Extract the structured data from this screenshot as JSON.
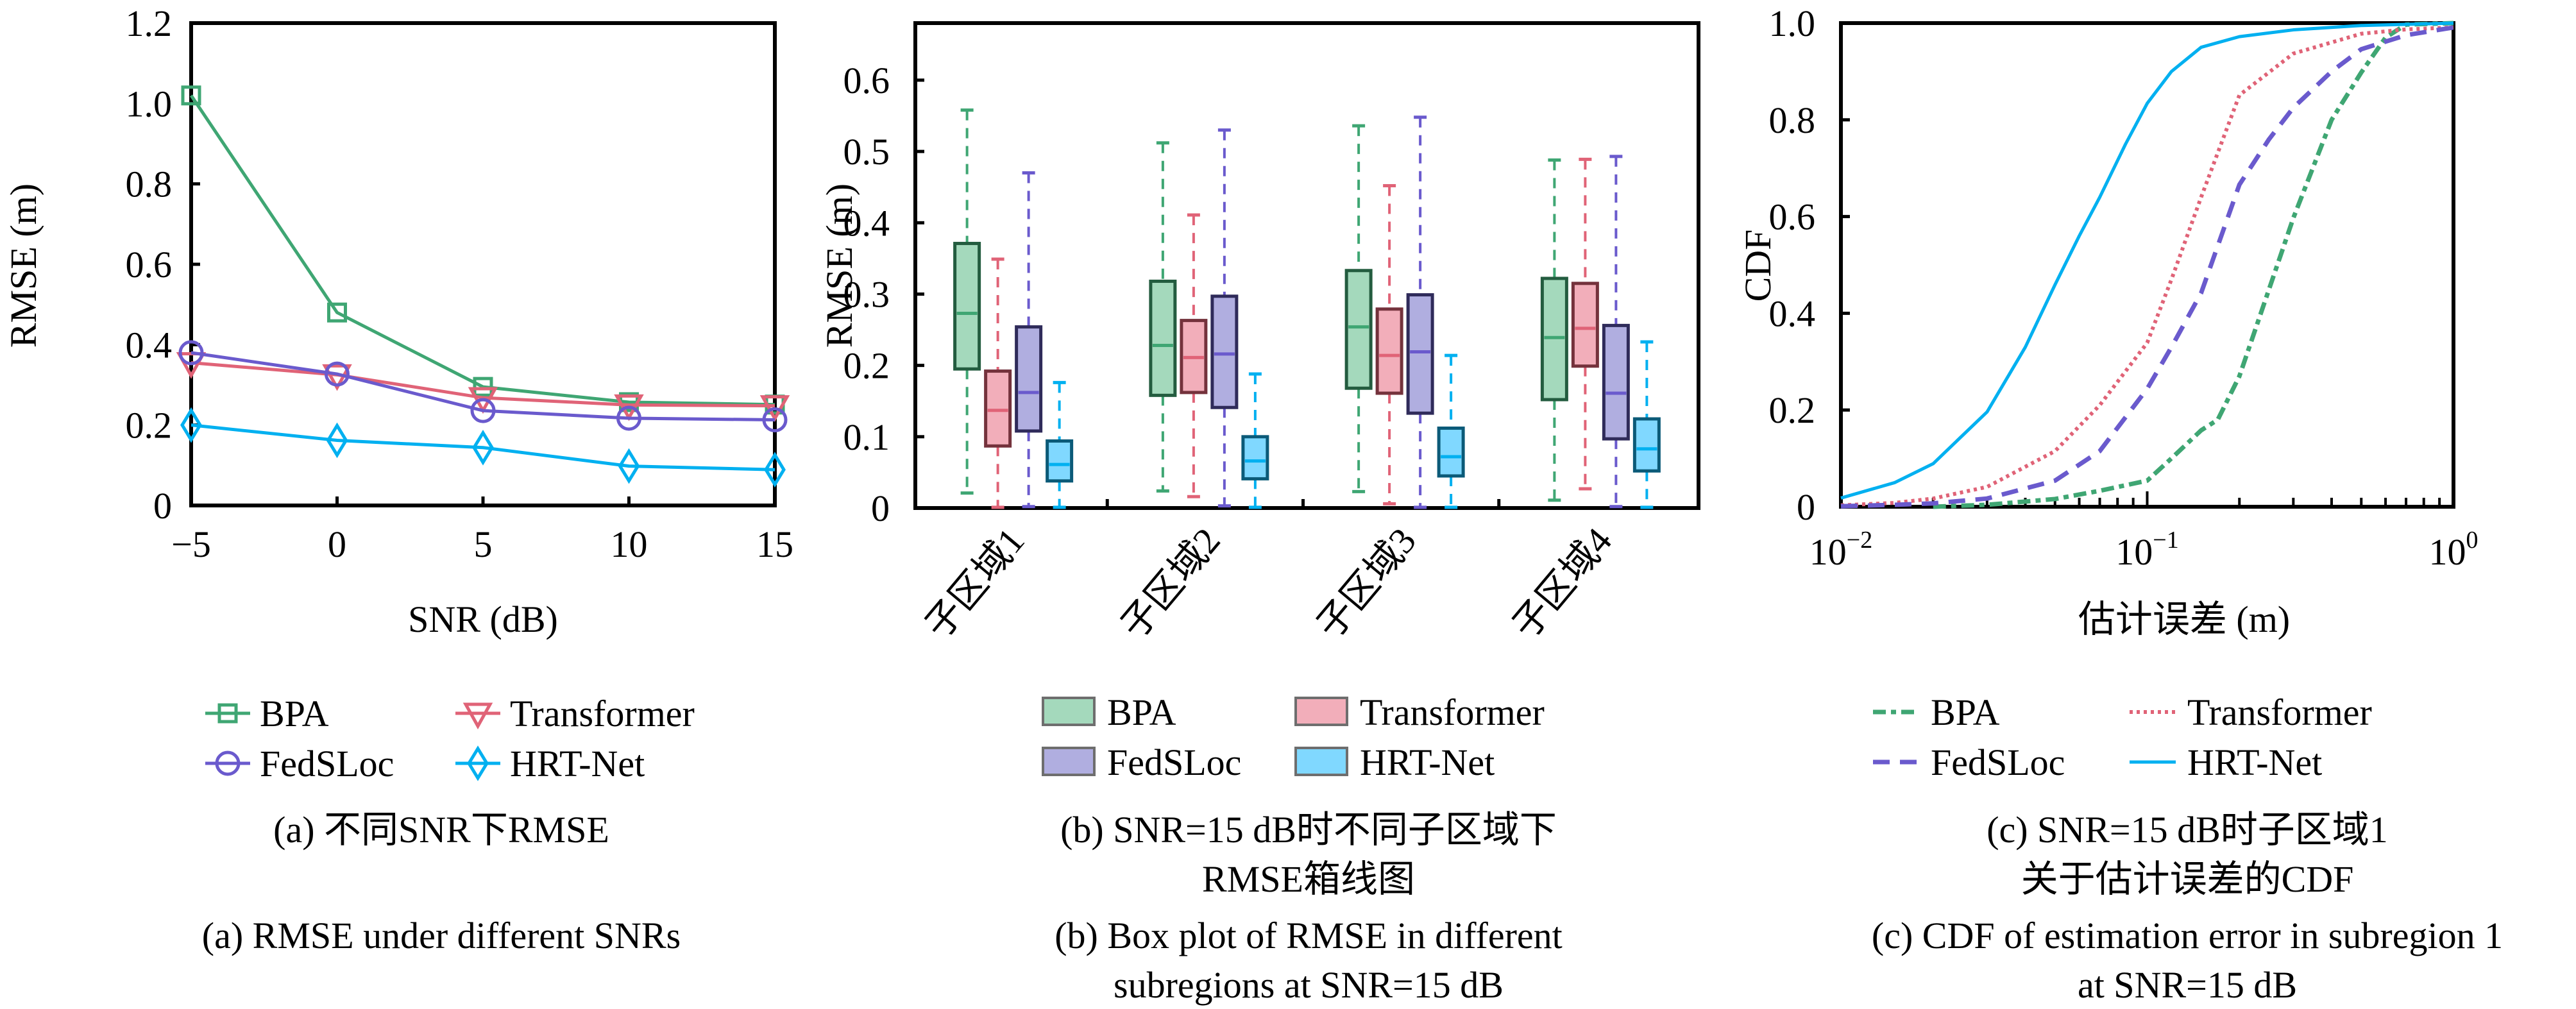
{
  "figure": {
    "panels": [
      "a",
      "b",
      "c"
    ]
  },
  "colors": {
    "BPA": "#3fa673",
    "Transformer": "#e06377",
    "FedSLoc": "#6a5acd",
    "HRT-Net": "#00b0f0",
    "BPA_fill": "#a4d9bc",
    "Transformer_fill": "#f2aeba",
    "FedSLoc_fill": "#b0aee0",
    "HRT-Net_fill": "#80d8ff",
    "BPA_edge": "#235c3f",
    "Transformer_edge": "#74323c",
    "FedSLoc_edge": "#2f2b5a",
    "HRT-Net_edge": "#0b5a78"
  },
  "chart_data": [
    {
      "id": "a",
      "type": "line",
      "title": "",
      "xlabel": "SNR (dB)",
      "ylabel": "RMSE (m)",
      "x": [
        -5,
        0,
        5,
        10,
        15
      ],
      "x_tick_labels": [
        "−5",
        "0",
        "5",
        "10",
        "15"
      ],
      "xlim": [
        -5,
        15
      ],
      "ylim": [
        0,
        1.2
      ],
      "y_ticks": [
        0,
        0.2,
        0.4,
        0.6,
        0.8,
        1.0,
        1.2
      ],
      "y_tick_labels": [
        "0",
        "0.2",
        "0.4",
        "0.6",
        "0.8",
        "1.0",
        "1.2"
      ],
      "grid": false,
      "legend_position": "below",
      "series": [
        {
          "name": "BPA",
          "marker": "square",
          "values": [
            1.02,
            0.48,
            0.295,
            0.257,
            0.251
          ]
        },
        {
          "name": "Transformer",
          "marker": "triangle-down",
          "values": [
            0.355,
            0.325,
            0.268,
            0.25,
            0.248
          ]
        },
        {
          "name": "FedSLoc",
          "marker": "circle",
          "values": [
            0.38,
            0.327,
            0.236,
            0.217,
            0.213
          ]
        },
        {
          "name": "HRT-Net",
          "marker": "diamond",
          "values": [
            0.2,
            0.162,
            0.144,
            0.098,
            0.089
          ]
        }
      ],
      "caption_cn": "(a) 不同SNR下RMSE",
      "caption_en": "(a) RMSE under different SNRs"
    },
    {
      "id": "b",
      "type": "box",
      "title": "",
      "xlabel": "",
      "ylabel": "RMSE (m)",
      "categories": [
        "子区域1",
        "子区域2",
        "子区域3",
        "子区域4"
      ],
      "ylim": [
        0,
        0.68
      ],
      "y_ticks": [
        0,
        0.1,
        0.2,
        0.3,
        0.4,
        0.5,
        0.6
      ],
      "y_tick_labels": [
        "0",
        "0.1",
        "0.2",
        "0.3",
        "0.4",
        "0.5",
        "0.6"
      ],
      "grid": false,
      "legend_position": "below",
      "series": [
        {
          "name": "BPA",
          "boxes": [
            {
              "min": 0.021,
              "q1": 0.195,
              "median": 0.273,
              "q3": 0.371,
              "max": 0.558
            },
            {
              "min": 0.024,
              "q1": 0.158,
              "median": 0.228,
              "q3": 0.318,
              "max": 0.512
            },
            {
              "min": 0.023,
              "q1": 0.168,
              "median": 0.254,
              "q3": 0.333,
              "max": 0.536
            },
            {
              "min": 0.011,
              "q1": 0.152,
              "median": 0.239,
              "q3": 0.322,
              "max": 0.488
            }
          ]
        },
        {
          "name": "Transformer",
          "boxes": [
            {
              "min": 0.001,
              "q1": 0.087,
              "median": 0.137,
              "q3": 0.192,
              "max": 0.349
            },
            {
              "min": 0.016,
              "q1": 0.162,
              "median": 0.211,
              "q3": 0.263,
              "max": 0.411
            },
            {
              "min": 0.006,
              "q1": 0.161,
              "median": 0.214,
              "q3": 0.279,
              "max": 0.452
            },
            {
              "min": 0.027,
              "q1": 0.199,
              "median": 0.252,
              "q3": 0.315,
              "max": 0.489
            }
          ]
        },
        {
          "name": "FedSLoc",
          "boxes": [
            {
              "min": 0.002,
              "q1": 0.108,
              "median": 0.162,
              "q3": 0.254,
              "max": 0.47
            },
            {
              "min": 0.003,
              "q1": 0.141,
              "median": 0.216,
              "q3": 0.297,
              "max": 0.53
            },
            {
              "min": 0.001,
              "q1": 0.133,
              "median": 0.219,
              "q3": 0.299,
              "max": 0.548
            },
            {
              "min": 0.002,
              "q1": 0.097,
              "median": 0.161,
              "q3": 0.256,
              "max": 0.493
            }
          ]
        },
        {
          "name": "HRT-Net",
          "boxes": [
            {
              "min": 0.001,
              "q1": 0.038,
              "median": 0.061,
              "q3": 0.094,
              "max": 0.176
            },
            {
              "min": 0.001,
              "q1": 0.041,
              "median": 0.066,
              "q3": 0.1,
              "max": 0.188
            },
            {
              "min": 0.001,
              "q1": 0.045,
              "median": 0.072,
              "q3": 0.112,
              "max": 0.214
            },
            {
              "min": 0.001,
              "q1": 0.052,
              "median": 0.083,
              "q3": 0.125,
              "max": 0.233
            }
          ]
        }
      ],
      "caption_cn_lines": [
        "(b) SNR=15 dB时不同子区域下",
        "RMSE箱线图"
      ],
      "caption_en_lines": [
        "(b) Box plot of RMSE in different",
        "subregions at SNR=15 dB"
      ]
    },
    {
      "id": "c",
      "type": "line",
      "title": "",
      "xlabel": "估计误差 (m)",
      "ylabel": "CDF",
      "xscale": "log",
      "xlim": [
        0.01,
        1
      ],
      "x_tick_labels": [
        {
          "base": "10",
          "exp": "−2"
        },
        {
          "base": "10",
          "exp": "−1"
        },
        {
          "base": "10",
          "exp": "0"
        }
      ],
      "ylim": [
        0,
        1.0
      ],
      "y_ticks": [
        0,
        0.2,
        0.4,
        0.6,
        0.8,
        1.0
      ],
      "y_tick_labels": [
        "0",
        "0.2",
        "0.4",
        "0.6",
        "0.8",
        "1.0"
      ],
      "grid": false,
      "legend_position": "below",
      "series": [
        {
          "name": "BPA",
          "style": "dash-dot",
          "x": [
            0.02,
            0.03,
            0.05,
            0.07,
            0.1,
            0.12,
            0.15,
            0.17,
            0.2,
            0.25,
            0.3,
            0.4,
            0.5,
            0.6,
            0.7,
            1.0
          ],
          "values": [
            0.0,
            0.004,
            0.016,
            0.033,
            0.054,
            0.1,
            0.158,
            0.18,
            0.27,
            0.45,
            0.597,
            0.8,
            0.898,
            0.97,
            0.997,
            1.0
          ]
        },
        {
          "name": "Transformer",
          "style": "dotted",
          "x": [
            0.01,
            0.015,
            0.02,
            0.03,
            0.05,
            0.07,
            0.1,
            0.12,
            0.15,
            0.2,
            0.3,
            0.5,
            0.7,
            1.0
          ],
          "values": [
            0.003,
            0.008,
            0.017,
            0.041,
            0.115,
            0.21,
            0.339,
            0.47,
            0.64,
            0.851,
            0.937,
            0.978,
            0.987,
            0.991
          ]
        },
        {
          "name": "FedSLoc",
          "style": "dashed",
          "x": [
            0.01,
            0.015,
            0.02,
            0.03,
            0.05,
            0.07,
            0.1,
            0.12,
            0.15,
            0.2,
            0.25,
            0.3,
            0.4,
            0.5,
            0.7,
            1.0
          ],
          "values": [
            0.001,
            0.004,
            0.007,
            0.017,
            0.054,
            0.115,
            0.244,
            0.33,
            0.442,
            0.666,
            0.76,
            0.825,
            0.9,
            0.946,
            0.975,
            0.991
          ]
        },
        {
          "name": "HRT-Net",
          "style": "solid",
          "x": [
            0.01,
            0.015,
            0.02,
            0.03,
            0.04,
            0.05,
            0.06,
            0.07,
            0.085,
            0.1,
            0.12,
            0.15,
            0.2,
            0.3,
            0.5,
            1.0
          ],
          "values": [
            0.018,
            0.05,
            0.089,
            0.196,
            0.33,
            0.459,
            0.56,
            0.64,
            0.75,
            0.834,
            0.9,
            0.95,
            0.972,
            0.986,
            0.995,
            1.0
          ]
        }
      ],
      "caption_cn_lines": [
        "(c) SNR=15 dB时子区域1",
        "关于估计误差的CDF"
      ],
      "caption_en_lines": [
        "(c) CDF of estimation error in subregion 1",
        "at SNR=15 dB"
      ]
    }
  ]
}
